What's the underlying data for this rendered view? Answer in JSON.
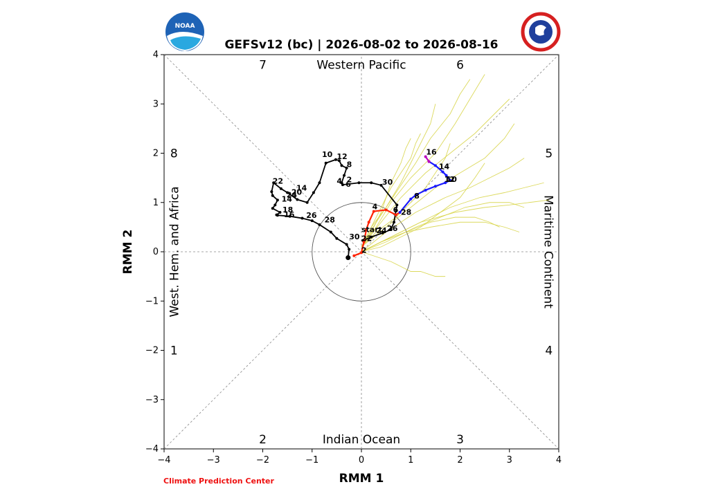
{
  "colors": {
    "observed": "#000000",
    "forecast_week1": "#ff2200",
    "forecast_week2": "#1a1aff",
    "forecast_end": "#bb00bb",
    "ensemble": "#d6d240",
    "credit": "#ee1111",
    "guide": "#888888"
  },
  "logos": {
    "left": "noaa-logo",
    "right": "nws-logo"
  },
  "credit_label": "Climate Prediction Center",
  "chart_data": {
    "type": "line",
    "title": "GEFSv12 (bc) | 2026-08-02 to 2026-08-16",
    "xlabel": "RMM 1",
    "ylabel": "RMM 2",
    "xlim": [
      -4,
      4
    ],
    "ylim": [
      -4,
      4
    ],
    "xticks": [
      -4,
      -3,
      -2,
      -1,
      0,
      1,
      2,
      3,
      4
    ],
    "yticks": [
      -4,
      -3,
      -2,
      -1,
      0,
      1,
      2,
      3,
      4
    ],
    "xtick_labels": [
      "−4",
      "−3",
      "−2",
      "−1",
      "0",
      "1",
      "2",
      "3",
      "4"
    ],
    "ytick_labels": [
      "−4",
      "−3",
      "−2",
      "−1",
      "0",
      "1",
      "2",
      "3",
      "4"
    ],
    "grid": false,
    "unit_circle_radius": 1,
    "phase_labels": [
      {
        "label": "1",
        "x": -3.8,
        "y": -2
      },
      {
        "label": "2",
        "x": -2,
        "y": -3.8
      },
      {
        "label": "3",
        "x": 2,
        "y": -3.8
      },
      {
        "label": "4",
        "x": 3.8,
        "y": -2
      },
      {
        "label": "5",
        "x": 3.8,
        "y": 2
      },
      {
        "label": "6",
        "x": 2,
        "y": 3.8
      },
      {
        "label": "7",
        "x": -2,
        "y": 3.8
      },
      {
        "label": "8",
        "x": -3.8,
        "y": 2
      }
    ],
    "region_labels": {
      "top": "Western Pacific",
      "bottom": "Indian Ocean",
      "left": "West. Hem. and Africa",
      "right": "Maritime Continent"
    },
    "observed": {
      "x": [
        -0.27,
        -0.25,
        -0.3,
        -0.5,
        -0.62,
        -0.85,
        -1.0,
        -1.2,
        -1.45,
        -1.7,
        -1.72,
        -1.65,
        -1.8,
        -1.75,
        -1.7,
        -1.8,
        -1.82,
        -1.78,
        -1.63,
        -1.5,
        -1.3,
        -1.1,
        -0.97,
        -0.85,
        -0.72,
        -0.52,
        -0.45,
        -0.4,
        -0.3,
        -0.35,
        -0.4,
        -0.38,
        -0.05,
        0.2,
        0.4,
        0.72,
        0.66,
        0.6,
        0.43,
        0.2,
        0.03
      ],
      "y": [
        -0.12,
        0.05,
        0.15,
        0.27,
        0.4,
        0.55,
        0.63,
        0.68,
        0.72,
        0.74,
        0.75,
        0.8,
        0.88,
        0.95,
        1.05,
        1.14,
        1.22,
        1.4,
        1.28,
        1.2,
        1.06,
        1.0,
        1.2,
        1.4,
        1.8,
        1.87,
        1.85,
        1.75,
        1.7,
        1.55,
        1.4,
        1.36,
        1.4,
        1.4,
        1.35,
        0.95,
        0.6,
        0.45,
        0.38,
        0.3,
        0.23
      ],
      "day_labels": [
        {
          "label": "30",
          "x": -0.25,
          "y": 0.25
        },
        {
          "label": "28",
          "x": -0.75,
          "y": 0.6
        },
        {
          "label": "26",
          "x": -1.12,
          "y": 0.69
        },
        {
          "label": "18",
          "x": -1.6,
          "y": 0.8
        },
        {
          "label": "16",
          "x": -1.57,
          "y": 0.7
        },
        {
          "label": "14",
          "x": -1.62,
          "y": 1.02
        },
        {
          "label": "20",
          "x": -1.42,
          "y": 1.16
        },
        {
          "label": "24",
          "x": -1.52,
          "y": 1.1
        },
        {
          "label": "22",
          "x": -1.8,
          "y": 1.38
        },
        {
          "label": "14",
          "x": -1.32,
          "y": 1.24
        },
        {
          "label": "10",
          "x": -0.8,
          "y": 1.92
        },
        {
          "label": "12",
          "x": -0.5,
          "y": 1.88
        },
        {
          "label": "8",
          "x": -0.3,
          "y": 1.72
        },
        {
          "label": "4",
          "x": -0.5,
          "y": 1.38
        },
        {
          "label": "2",
          "x": -0.3,
          "y": 1.41
        },
        {
          "label": "6",
          "x": -0.32,
          "y": 1.32
        },
        {
          "label": "30",
          "x": 0.42,
          "y": 1.36
        },
        {
          "label": "26",
          "x": 0.52,
          "y": 0.42
        },
        {
          "label": "24",
          "x": 0.3,
          "y": 0.38
        },
        {
          "label": "22",
          "x": 0.0,
          "y": 0.22
        },
        {
          "label": "start",
          "x": 0.0,
          "y": 0.4
        }
      ]
    },
    "forecast_week1": {
      "x": [
        -0.15,
        0.0,
        0.05,
        0.1,
        0.15,
        0.25,
        0.5,
        0.7,
        0.78
      ],
      "y": [
        -0.08,
        -0.02,
        0.2,
        0.45,
        0.6,
        0.82,
        0.85,
        0.75,
        0.8
      ],
      "day_labels": [
        {
          "label": "2",
          "x": 0.0,
          "y": -0.02
        },
        {
          "label": "4",
          "x": 0.22,
          "y": 0.86
        },
        {
          "label": "6",
          "x": 0.64,
          "y": 0.8
        },
        {
          "label": "28",
          "x": 0.8,
          "y": 0.75
        }
      ]
    },
    "forecast_week2": {
      "x": [
        0.78,
        1.0,
        1.1,
        1.3,
        1.5,
        1.7,
        1.8,
        1.72,
        1.65,
        1.5,
        1.37
      ],
      "y": [
        0.8,
        1.07,
        1.15,
        1.25,
        1.33,
        1.4,
        1.45,
        1.55,
        1.62,
        1.75,
        1.83
      ],
      "day_labels": [
        {
          "label": "8",
          "x": 1.07,
          "y": 1.08
        },
        {
          "label": "10",
          "x": 1.72,
          "y": 1.42
        },
        {
          "label": "12",
          "x": 1.68,
          "y": 1.42
        },
        {
          "label": "14",
          "x": 1.57,
          "y": 1.68
        }
      ]
    },
    "forecast_end": {
      "x": [
        1.37,
        1.3
      ],
      "y": [
        1.83,
        1.93
      ],
      "day_labels": [
        {
          "label": "16",
          "x": 1.31,
          "y": 1.97
        }
      ]
    },
    "ensemble_members": [
      {
        "x": [
          0.0,
          0.3,
          0.6,
          1.0,
          1.5,
          1.9,
          2.2,
          2.5
        ],
        "y": [
          0.1,
          0.5,
          1.0,
          1.5,
          2.0,
          2.6,
          3.1,
          3.6
        ]
      },
      {
        "x": [
          0.0,
          0.4,
          0.8,
          1.3,
          1.8,
          2.3,
          2.7,
          3.0
        ],
        "y": [
          0.1,
          0.6,
          1.1,
          1.6,
          2.0,
          2.4,
          2.8,
          3.1
        ]
      },
      {
        "x": [
          0.0,
          0.5,
          1.0,
          1.5,
          2.0,
          2.5,
          2.9,
          3.1
        ],
        "y": [
          0.1,
          0.5,
          0.9,
          1.3,
          1.6,
          1.9,
          2.3,
          2.6
        ]
      },
      {
        "x": [
          0.0,
          0.5,
          1.1,
          1.7,
          2.2,
          2.6,
          3.0,
          3.3
        ],
        "y": [
          0.0,
          0.4,
          0.8,
          1.1,
          1.3,
          1.5,
          1.7,
          1.9
        ]
      },
      {
        "x": [
          0.0,
          0.6,
          1.2,
          1.8,
          2.4,
          2.9,
          3.3,
          3.7
        ],
        "y": [
          0.0,
          0.3,
          0.6,
          0.9,
          1.1,
          1.2,
          1.3,
          1.4
        ]
      },
      {
        "x": [
          0.0,
          0.5,
          1.1,
          1.6,
          2.1,
          2.6,
          3.0,
          3.3
        ],
        "y": [
          0.0,
          0.2,
          0.5,
          0.7,
          0.9,
          1.0,
          1.0,
          0.9
        ]
      },
      {
        "x": [
          0.0,
          0.4,
          0.9,
          1.4,
          1.9,
          2.3,
          2.6,
          2.8
        ],
        "y": [
          0.0,
          0.2,
          0.4,
          0.6,
          0.7,
          0.7,
          0.6,
          0.5
        ]
      },
      {
        "x": [
          0.0,
          0.3,
          0.7,
          1.0,
          1.3,
          1.5,
          1.7,
          1.8
        ],
        "y": [
          0.1,
          0.4,
          0.7,
          1.0,
          1.3,
          1.6,
          1.9,
          2.2
        ]
      },
      {
        "x": [
          0.0,
          0.2,
          0.5,
          0.8,
          1.0,
          1.2,
          1.4,
          1.5
        ],
        "y": [
          0.1,
          0.5,
          0.9,
          1.4,
          1.8,
          2.2,
          2.6,
          3.0
        ]
      },
      {
        "x": [
          0.0,
          0.2,
          0.4,
          0.6,
          0.8,
          1.0,
          1.1,
          1.2
        ],
        "y": [
          0.1,
          0.5,
          0.9,
          1.3,
          1.6,
          1.9,
          2.2,
          2.4
        ]
      },
      {
        "x": [
          0.0,
          0.3,
          0.6,
          0.8,
          1.0,
          1.2,
          1.5,
          1.7
        ],
        "y": [
          0.0,
          -0.1,
          -0.2,
          -0.3,
          -0.4,
          -0.4,
          -0.5,
          -0.5
        ]
      },
      {
        "x": [
          0.0,
          0.4,
          0.8,
          1.2,
          1.6,
          2.0,
          2.3,
          2.5
        ],
        "y": [
          0.0,
          0.1,
          0.3,
          0.5,
          0.8,
          1.1,
          1.5,
          1.8
        ]
      },
      {
        "x": [
          0.0,
          0.6,
          1.2,
          1.9,
          2.5,
          3.0,
          3.4,
          3.8
        ],
        "y": [
          0.0,
          0.3,
          0.6,
          0.8,
          0.9,
          0.95,
          1.0,
          1.05
        ]
      },
      {
        "x": [
          0.0,
          0.3,
          0.7,
          1.1,
          1.4,
          1.8,
          2.0,
          2.2
        ],
        "y": [
          0.1,
          0.6,
          1.2,
          1.8,
          2.3,
          2.8,
          3.2,
          3.5
        ]
      },
      {
        "x": [
          0.0,
          0.2,
          0.4,
          0.5,
          0.6,
          0.8,
          0.9,
          1.0
        ],
        "y": [
          0.1,
          0.4,
          0.8,
          1.1,
          1.4,
          1.8,
          2.1,
          2.3
        ]
      },
      {
        "x": [
          0.0,
          0.4,
          0.9,
          1.4,
          2.0,
          2.5,
          2.9,
          3.2
        ],
        "y": [
          0.0,
          0.2,
          0.4,
          0.5,
          0.6,
          0.6,
          0.5,
          0.4
        ]
      }
    ]
  }
}
